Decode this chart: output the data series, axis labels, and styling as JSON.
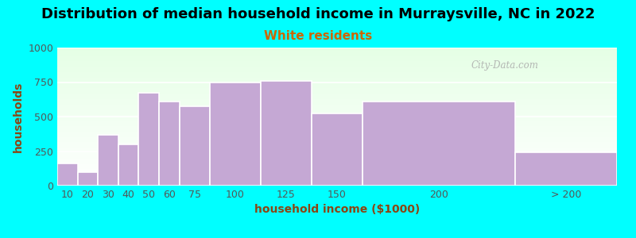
{
  "title": "Distribution of median household income in Murraysville, NC in 2022",
  "subtitle": "White residents",
  "xlabel": "household income ($1000)",
  "ylabel": "households",
  "background_color": "#00FFFF",
  "bar_color": "#c5a8d4",
  "bar_edge_color": "#ffffff",
  "categories": [
    "10",
    "20",
    "30",
    "40",
    "50",
    "60",
    "75",
    "100",
    "125",
    "150",
    "200",
    "> 200"
  ],
  "values": [
    160,
    100,
    370,
    300,
    670,
    610,
    575,
    750,
    760,
    525,
    610,
    240
  ],
  "left_edges": [
    0,
    10,
    20,
    30,
    40,
    50,
    60,
    75,
    100,
    125,
    150,
    225
  ],
  "widths": [
    10,
    10,
    10,
    10,
    10,
    10,
    15,
    25,
    25,
    25,
    75,
    50
  ],
  "ylim": [
    0,
    1000
  ],
  "yticks": [
    0,
    250,
    500,
    750,
    1000
  ],
  "title_fontsize": 13,
  "subtitle_fontsize": 11,
  "subtitle_color": "#cc6600",
  "axis_label_fontsize": 10,
  "tick_fontsize": 9,
  "watermark_text": "City-Data.com",
  "watermark_color": "#aaaaaa",
  "title_color": "#000000",
  "label_color": "#8B4513",
  "xtick_positions": [
    5,
    15,
    25,
    35,
    45,
    55,
    67.5,
    87.5,
    112.5,
    137.5,
    187.5,
    250
  ],
  "xtick_labels": [
    "10",
    "20",
    "30",
    "40",
    "50",
    "60",
    "75",
    "100",
    "125",
    "150",
    "200",
    "> 200"
  ],
  "plot_xlim": [
    0,
    275
  ],
  "green_bg_left_end": 40,
  "green_bg_right_start": 225
}
